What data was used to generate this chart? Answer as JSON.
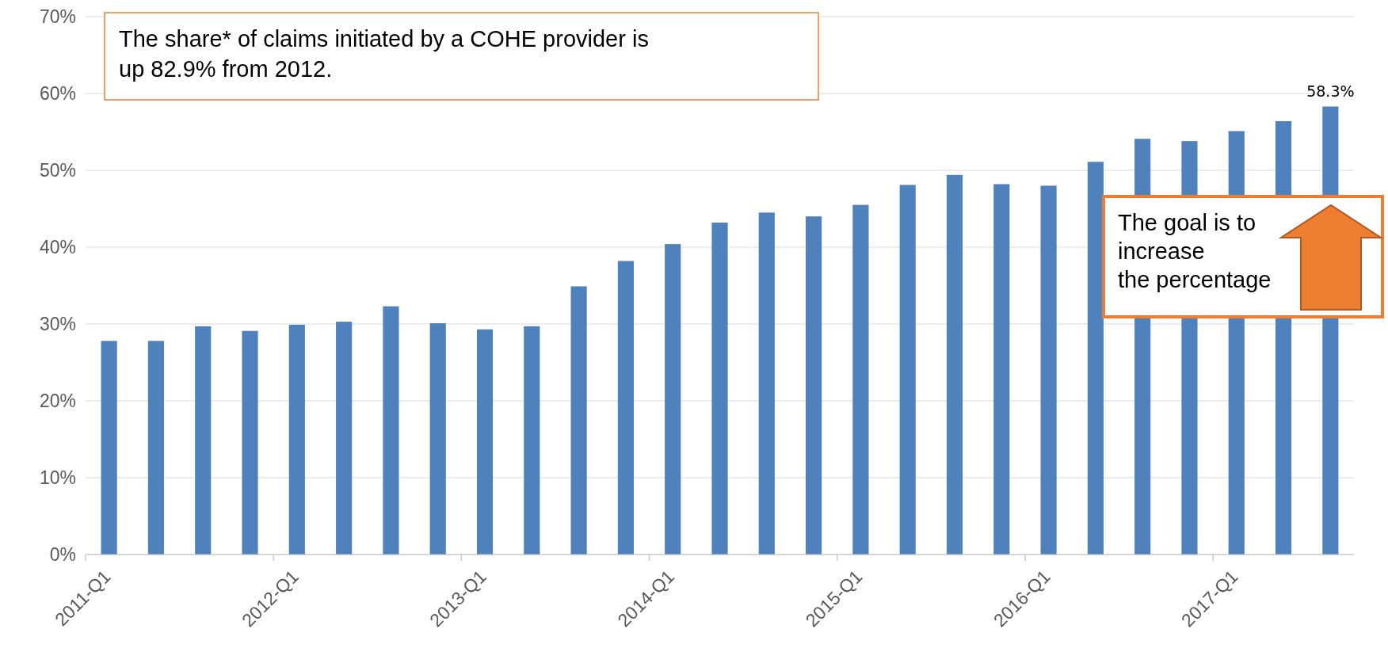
{
  "chart_data": {
    "type": "bar",
    "categories": [
      "2011-Q1",
      null,
      null,
      null,
      "2012-Q1",
      null,
      null,
      null,
      "2013-Q1",
      null,
      null,
      null,
      "2014-Q1",
      null,
      null,
      null,
      "2015-Q1",
      null,
      null,
      null,
      "2016-Q1",
      null,
      null,
      null,
      "2017-Q1",
      null,
      null
    ],
    "values": [
      27.8,
      27.8,
      29.7,
      29.1,
      29.9,
      30.3,
      32.3,
      30.1,
      29.3,
      29.7,
      34.9,
      38.2,
      40.4,
      43.2,
      44.5,
      44.0,
      45.5,
      48.1,
      49.4,
      48.2,
      48.0,
      51.1,
      54.1,
      53.8,
      55.1,
      56.4,
      58.3
    ],
    "value_labels": [
      null,
      null,
      null,
      null,
      null,
      null,
      null,
      null,
      null,
      null,
      null,
      null,
      null,
      null,
      null,
      null,
      null,
      null,
      null,
      null,
      null,
      null,
      null,
      null,
      null,
      null,
      "58.3%"
    ],
    "color": "#4f81bd",
    "ylim": [
      0,
      70
    ],
    "yticks": [
      {
        "value": 0,
        "label": "0%"
      },
      {
        "value": 10,
        "label": "10%"
      },
      {
        "value": 20,
        "label": "20%"
      },
      {
        "value": 30,
        "label": "30%"
      },
      {
        "value": 40,
        "label": "40%"
      },
      {
        "value": 50,
        "label": "50%"
      },
      {
        "value": 60,
        "label": "60%"
      },
      {
        "value": 70,
        "label": "70%"
      }
    ],
    "grid": "y",
    "annotations": [
      "The share* of claims initiated by a COHE provider is\nup 82.9% from 2012.",
      "The goal is to\nincrease\nthe percentage"
    ]
  }
}
